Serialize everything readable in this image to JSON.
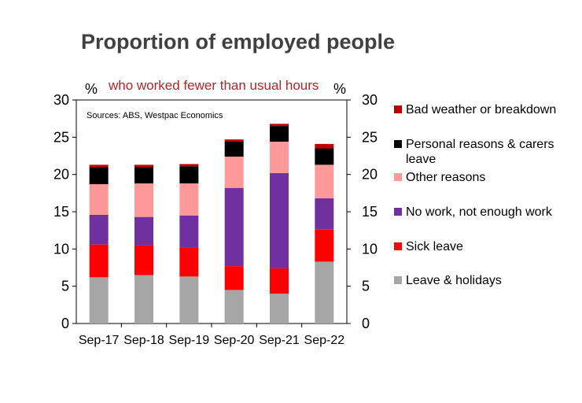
{
  "header": {
    "title": "Proportion of employed people",
    "subtitle": "who worked fewer than usual hours",
    "left_unit": "%",
    "right_unit": "%",
    "source": "Sources: ABS, Westpac Economics"
  },
  "chart_data": {
    "type": "bar",
    "stacked": true,
    "title": "Proportion of employed people",
    "subtitle": "who worked fewer than usual hours",
    "categories": [
      "Sep-17",
      "Sep-18",
      "Sep-19",
      "Sep-20",
      "Sep-21",
      "Sep-22"
    ],
    "ylim": [
      0,
      30
    ],
    "yticks": [
      0,
      5,
      10,
      15,
      20,
      25,
      30
    ],
    "ytick_labels": [
      "0",
      "5",
      "10",
      "15",
      "20",
      "25",
      "30"
    ],
    "y2ticks": [
      0,
      5,
      10,
      15,
      20,
      25,
      30
    ],
    "y2tick_labels": [
      "0",
      "5",
      "10",
      "15",
      "20",
      "25",
      "30"
    ],
    "legend_position": "right",
    "grid": false,
    "series": [
      {
        "name": "Leave & holidays",
        "color": "#a6a6a6",
        "values": [
          6.2,
          6.5,
          6.3,
          4.5,
          4.0,
          8.3
        ]
      },
      {
        "name": "Sick leave",
        "color": "#ff0000",
        "values": [
          4.4,
          4.0,
          3.9,
          3.2,
          3.4,
          4.3
        ]
      },
      {
        "name": "No work, not enough work",
        "color": "#7030a0",
        "values": [
          4.0,
          3.8,
          4.3,
          10.5,
          12.8,
          4.2
        ]
      },
      {
        "name": "Other reasons",
        "color": "#ff9999",
        "values": [
          4.1,
          4.5,
          4.3,
          4.2,
          4.2,
          4.5
        ]
      },
      {
        "name": "Personal reasons & carers leave",
        "color": "#000000",
        "values": [
          2.3,
          2.2,
          2.3,
          2.0,
          2.1,
          2.2
        ]
      },
      {
        "name": "Bad weather or breakdown",
        "color": "#c00000",
        "values": [
          0.3,
          0.3,
          0.3,
          0.3,
          0.3,
          0.6
        ]
      }
    ]
  },
  "legend": {
    "items": [
      {
        "label": "Bad weather or breakdown",
        "color": "#c00000"
      },
      {
        "label": "Personal reasons & carers leave",
        "color": "#000000"
      },
      {
        "label": "Other reasons",
        "color": "#ff9999"
      },
      {
        "label": "No work, not enough work",
        "color": "#7030a0"
      },
      {
        "label": "Sick leave",
        "color": "#ff0000"
      },
      {
        "label": "Leave & holidays",
        "color": "#a6a6a6"
      }
    ]
  }
}
